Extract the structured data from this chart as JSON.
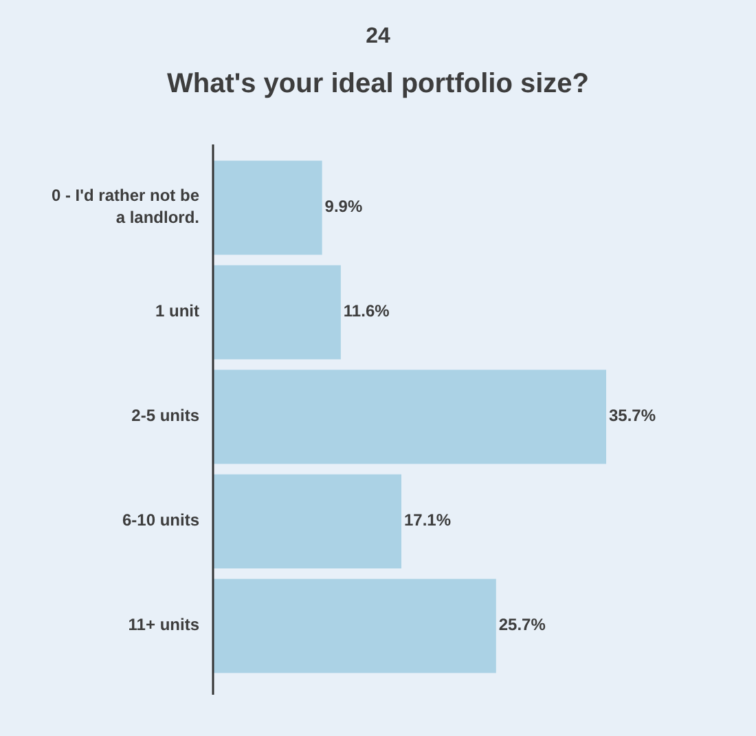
{
  "chart_data": {
    "type": "bar",
    "orientation": "horizontal",
    "title": "What's your ideal portfolio size?",
    "annotations": [
      "24"
    ],
    "categories": [
      "0 - I'd rather not be a landlord.",
      "1 unit",
      "2-5 units",
      "6-10 units",
      "11+ units"
    ],
    "values": [
      9.9,
      11.6,
      35.7,
      17.1,
      25.7
    ],
    "value_labels": [
      "9.9%",
      "11.6%",
      "35.7%",
      "17.1%",
      "25.7%"
    ],
    "color": "#abd2e5"
  }
}
